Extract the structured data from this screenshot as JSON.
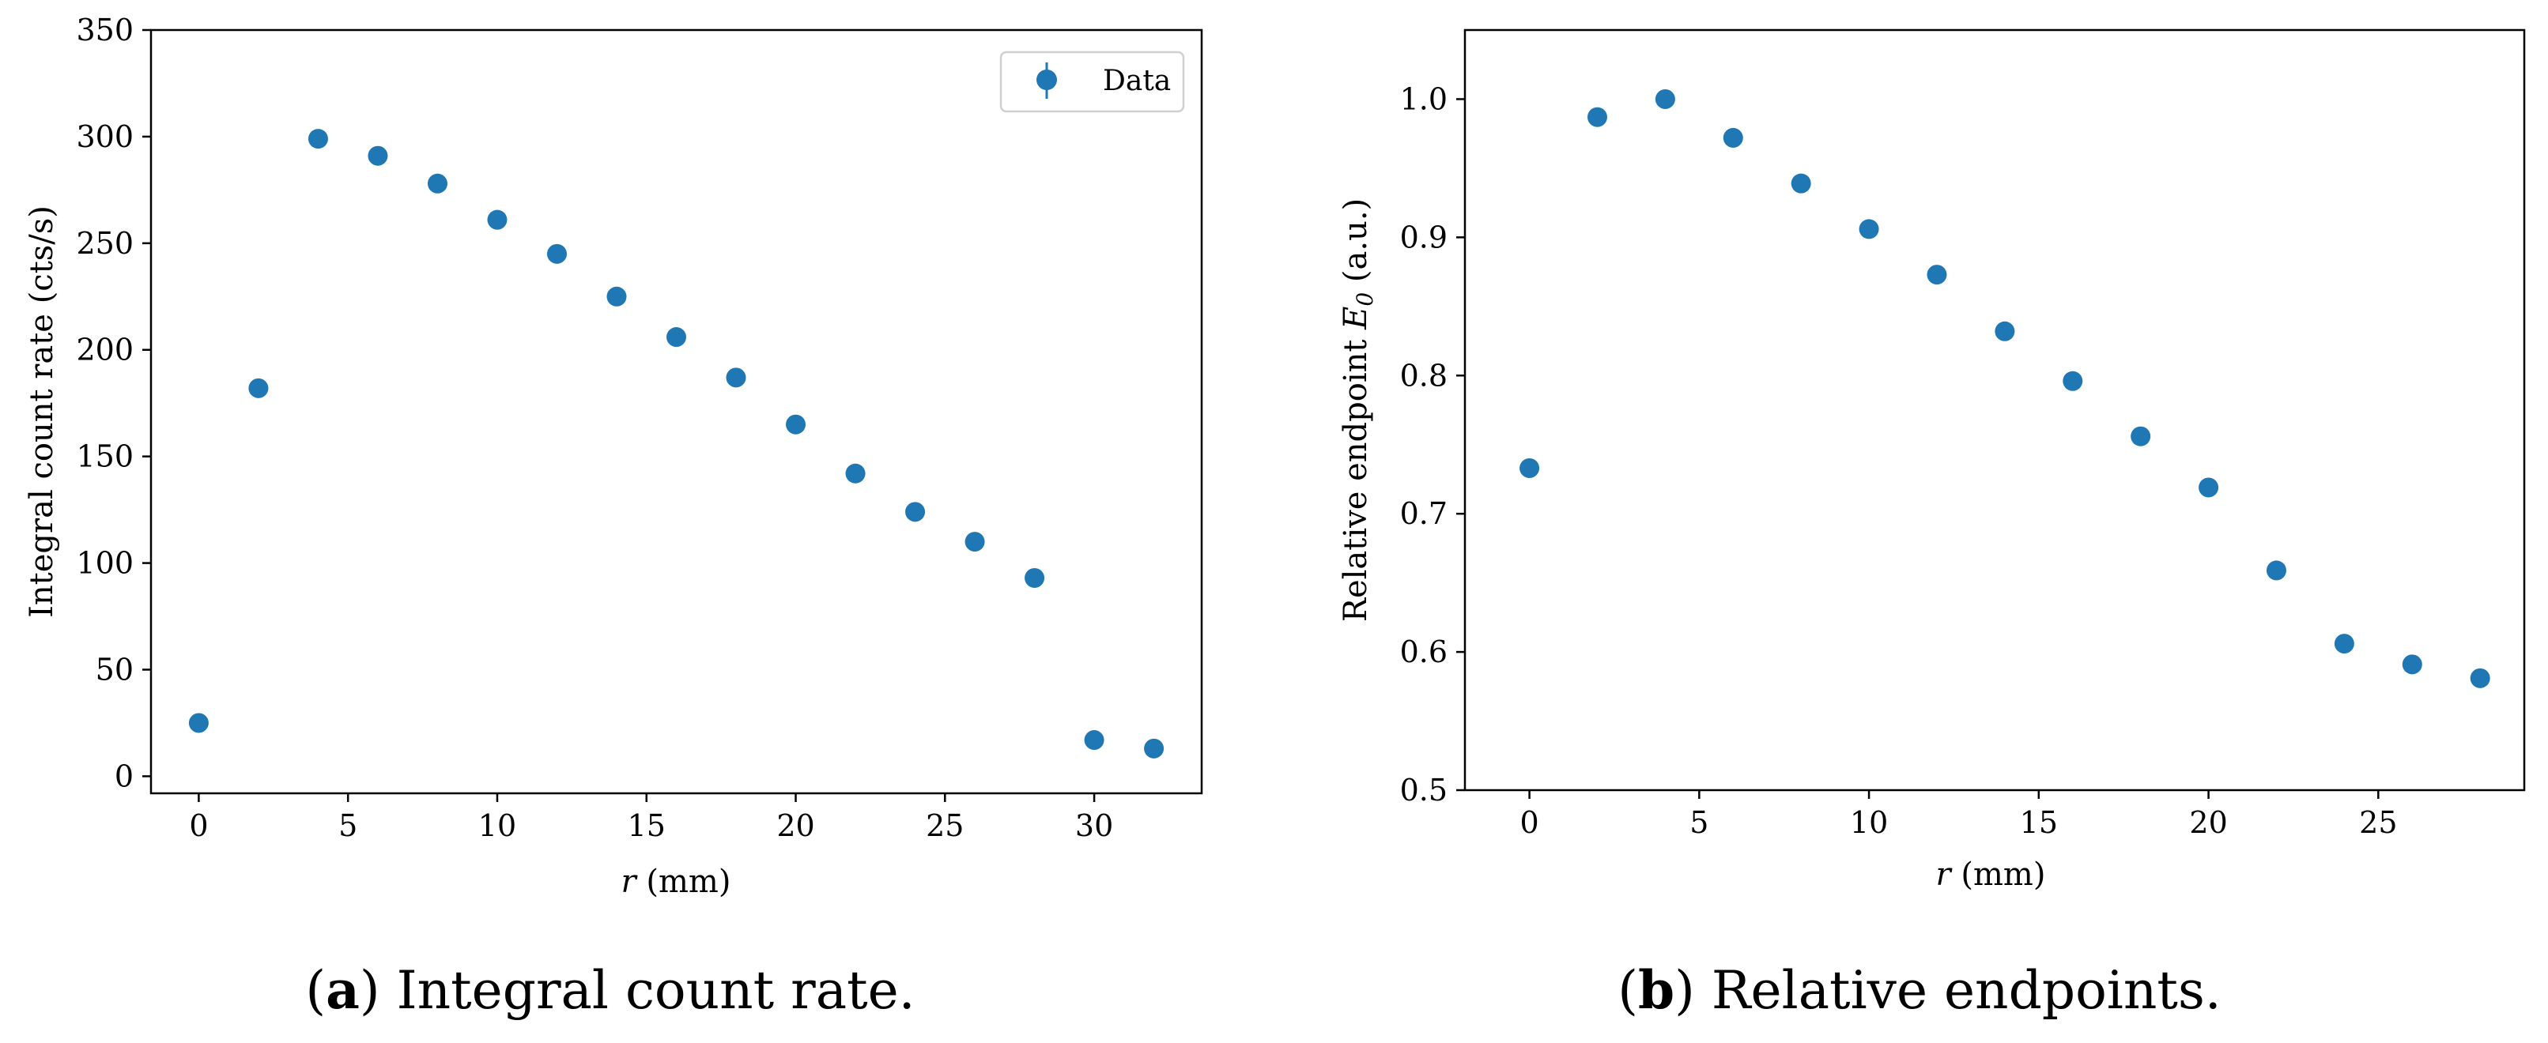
{
  "chart_data": [
    {
      "type": "scatter",
      "title": "",
      "xlabel": "r (mm)",
      "xlabel_var": "r",
      "xlabel_unit": "(mm)",
      "ylabel": "Integral count rate (cts/s)",
      "xlim": [
        -1.6,
        33.6
      ],
      "ylim": [
        -8,
        350
      ],
      "xticks": [
        0,
        5,
        10,
        15,
        20,
        25,
        30
      ],
      "yticks": [
        0,
        50,
        100,
        150,
        200,
        250,
        300,
        350
      ],
      "legend": {
        "label": "Data",
        "position": "top-right"
      },
      "color": "#1f77b4",
      "series": [
        {
          "name": "Data",
          "x": [
            0,
            2,
            4,
            6,
            8,
            10,
            12,
            14,
            16,
            18,
            20,
            22,
            24,
            26,
            28,
            30,
            32
          ],
          "y": [
            25,
            182,
            299,
            291,
            278,
            261,
            245,
            225,
            206,
            187,
            165,
            142,
            124,
            110,
            93,
            17,
            13
          ]
        }
      ],
      "caption": {
        "letter": "a",
        "text": " Integral count rate."
      }
    },
    {
      "type": "scatter",
      "title": "",
      "xlabel": "r (mm)",
      "xlabel_var": "r",
      "xlabel_unit": "(mm)",
      "ylabel": "Relative endpoint E0 (a.u.)",
      "ylabel_prefix": "Relative endpoint ",
      "ylabel_var": "E",
      "ylabel_sub": "0",
      "ylabel_unit": " (a.u.)",
      "xlim": [
        -1.9,
        29.3
      ],
      "ylim": [
        0.5,
        1.05
      ],
      "xticks": [
        0,
        5,
        10,
        15,
        20,
        25
      ],
      "yticks": [
        0.5,
        0.6,
        0.7,
        0.8,
        0.9,
        1.0
      ],
      "ytick_labels": [
        "0.5",
        "0.6",
        "0.7",
        "0.8",
        "0.9",
        "1.0"
      ],
      "color": "#1f77b4",
      "series": [
        {
          "name": "Relative endpoints",
          "x": [
            0,
            2,
            4,
            6,
            8,
            10,
            12,
            14,
            16,
            18,
            20,
            22,
            24,
            26,
            28
          ],
          "y": [
            0.733,
            0.987,
            1.0,
            0.972,
            0.939,
            0.906,
            0.873,
            0.832,
            0.796,
            0.756,
            0.719,
            0.659,
            0.606,
            0.591,
            0.581
          ]
        }
      ],
      "caption": {
        "letter": "b",
        "text": " Relative endpoints."
      }
    }
  ]
}
